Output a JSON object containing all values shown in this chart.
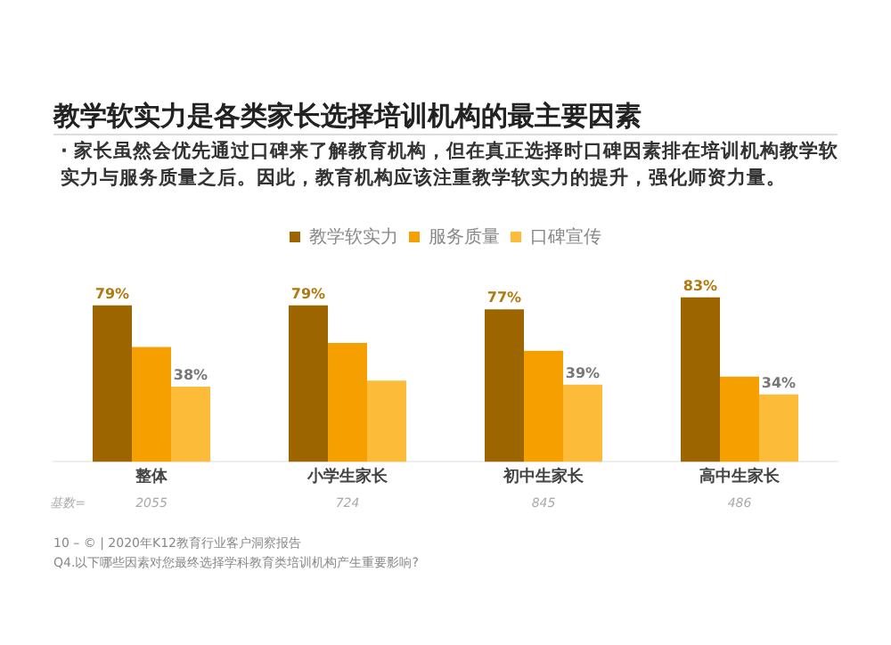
{
  "chart_data": {
    "type": "bar",
    "title": "教学软实力是各类家长选择培训机构的最主要因素",
    "subtitle": "· 家长虽然会优先通过口碑来了解教育机构，但在真正选择时口碑因素排在培训机构教学软实力与服务质量之后。因此，教育机构应该注重教学软实力的提升，强化师资力量。",
    "categories": [
      "整体",
      "小学生家长",
      "初中生家长",
      "高中生家长"
    ],
    "series": [
      {
        "name": "教学软实力",
        "color": "#9c6500",
        "values": [
          79,
          79,
          77,
          83
        ],
        "value_labels": [
          "79%",
          "79%",
          "77%",
          "83%"
        ]
      },
      {
        "name": "服务质量",
        "color": "#f5a000",
        "values": [
          58,
          60,
          56,
          43
        ],
        "value_labels": [
          null,
          null,
          null,
          null
        ]
      },
      {
        "name": "口碑宣传",
        "color": "#fdbb3a",
        "values": [
          38,
          41,
          39,
          34
        ],
        "value_labels": [
          "38%",
          null,
          "39%",
          "34%"
        ]
      }
    ],
    "tick_labels": "x",
    "grid": false,
    "legend": "top",
    "annotations": [
      "基数=",
      "2055",
      "724",
      "845",
      "486",
      "10 – © | 2020年K12教育行业客户洞察报告",
      "Q4.以下哪些因素对您最终选择学科教育类培训机构产生重要影响?"
    ]
  }
}
